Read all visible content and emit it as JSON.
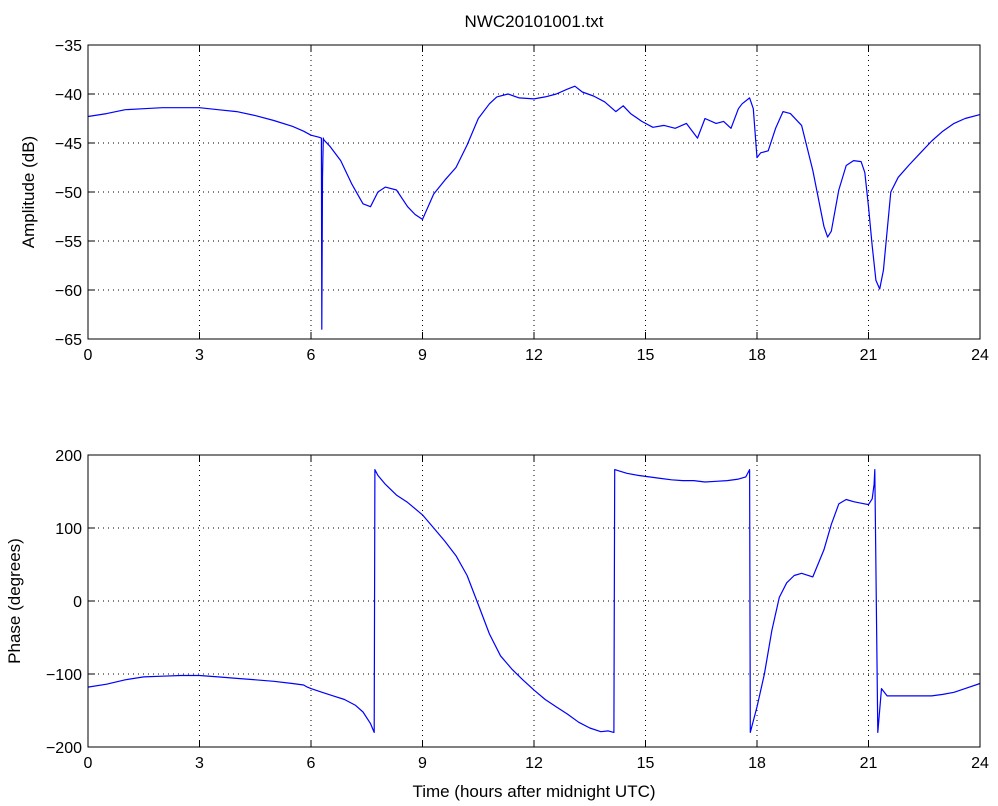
{
  "title": "NWC20101001.txt",
  "colors": {
    "line": "#0000ff",
    "axes": "#000000",
    "grid": "#000000",
    "background": "#ffffff"
  },
  "chart_data": [
    {
      "type": "line",
      "title": "NWC20101001.txt",
      "xlabel": "",
      "ylabel": "Amplitude (dB)",
      "xlim": [
        0,
        24
      ],
      "ylim": [
        -65,
        -35
      ],
      "xticks": [
        0,
        3,
        6,
        9,
        12,
        15,
        18,
        21,
        24
      ],
      "yticks": [
        -65,
        -60,
        -55,
        -50,
        -45,
        -40,
        -35
      ],
      "grid": true,
      "series": [
        {
          "x": [
            0,
            0.5,
            1,
            1.5,
            2,
            2.5,
            3,
            3.5,
            4,
            4.5,
            5,
            5.5,
            5.8,
            6,
            6.2,
            6.28,
            6.29,
            6.31,
            6.33,
            6.34,
            6.35,
            6.5,
            6.8,
            7.1,
            7.4,
            7.6,
            7.8,
            8.0,
            8.3,
            8.6,
            8.8,
            9.0,
            9.3,
            9.6,
            9.9,
            10.2,
            10.5,
            10.8,
            11.0,
            11.3,
            11.6,
            12.0,
            12.3,
            12.6,
            12.9,
            13.1,
            13.3,
            13.6,
            13.9,
            14.2,
            14.4,
            14.6,
            14.9,
            15.2,
            15.5,
            15.8,
            16.1,
            16.4,
            16.6,
            16.9,
            17.1,
            17.3,
            17.5,
            17.6,
            17.8,
            17.9,
            18.0,
            18.1,
            18.3,
            18.5,
            18.7,
            18.9,
            19.2,
            19.5,
            19.8,
            19.9,
            20.0,
            20.2,
            20.4,
            20.6,
            20.8,
            20.9,
            21.0,
            21.1,
            21.2,
            21.3,
            21.4,
            21.6,
            21.8,
            22.1,
            22.4,
            22.7,
            23.0,
            23.3,
            23.6,
            24.0
          ],
          "y": [
            -42.3,
            -42.0,
            -41.6,
            -41.5,
            -41.4,
            -41.4,
            -41.4,
            -41.6,
            -41.8,
            -42.2,
            -42.7,
            -43.3,
            -43.8,
            -44.2,
            -44.4,
            -44.5,
            -64.0,
            -48.5,
            -44.5,
            -44.6,
            -44.7,
            -45.3,
            -46.8,
            -49.2,
            -51.2,
            -51.5,
            -50.0,
            -49.5,
            -49.8,
            -51.5,
            -52.3,
            -52.8,
            -50.2,
            -48.8,
            -47.5,
            -45.2,
            -42.5,
            -41.0,
            -40.3,
            -40.0,
            -40.4,
            -40.5,
            -40.3,
            -40.0,
            -39.5,
            -39.2,
            -39.8,
            -40.2,
            -40.8,
            -41.8,
            -41.2,
            -42.0,
            -42.8,
            -43.4,
            -43.2,
            -43.5,
            -43.0,
            -44.5,
            -42.5,
            -43.0,
            -42.8,
            -43.5,
            -41.5,
            -41.0,
            -40.4,
            -41.5,
            -46.5,
            -46.0,
            -45.8,
            -43.5,
            -41.8,
            -42.0,
            -43.2,
            -47.8,
            -53.5,
            -54.6,
            -54.0,
            -49.8,
            -47.3,
            -46.8,
            -46.9,
            -48.0,
            -51.5,
            -55.5,
            -59.0,
            -59.9,
            -58.0,
            -50.0,
            -48.5,
            -47.2,
            -46.0,
            -44.8,
            -43.8,
            -43.0,
            -42.5,
            -42.1
          ],
          "x_scale_note": ""
        }
      ]
    },
    {
      "type": "line",
      "title": "",
      "xlabel": "Time (hours after midnight UTC)",
      "ylabel": "Phase (degrees)",
      "xlim": [
        0,
        24
      ],
      "ylim": [
        -200,
        200
      ],
      "xticks": [
        0,
        3,
        6,
        9,
        12,
        15,
        18,
        21,
        24
      ],
      "yticks": [
        -200,
        -100,
        0,
        100,
        200
      ],
      "grid": true,
      "series": [
        {
          "x": [
            0,
            0.5,
            1,
            1.5,
            2,
            2.5,
            3,
            3.5,
            4,
            4.5,
            5,
            5.5,
            5.8,
            5.9,
            6.0,
            6.3,
            6.6,
            6.9,
            7.2,
            7.4,
            7.6,
            7.7,
            7.72,
            7.8,
            8.0,
            8.3,
            8.6,
            9.0,
            9.3,
            9.6,
            9.9,
            10.2,
            10.5,
            10.8,
            11.1,
            11.4,
            11.7,
            12.0,
            12.3,
            12.6,
            12.9,
            13.2,
            13.5,
            13.8,
            14.0,
            14.15,
            14.17,
            14.3,
            14.5,
            14.8,
            15.1,
            15.4,
            15.7,
            16.0,
            16.3,
            16.6,
            16.9,
            17.2,
            17.5,
            17.7,
            17.8,
            17.82,
            18.0,
            18.2,
            18.4,
            18.6,
            18.8,
            19.0,
            19.2,
            19.5,
            19.8,
            20.0,
            20.2,
            20.4,
            20.6,
            20.8,
            21.0,
            21.1,
            21.15,
            21.17,
            21.25,
            21.35,
            21.5,
            21.8,
            22.1,
            22.4,
            22.7,
            23.0,
            23.3,
            23.6,
            24.0
          ],
          "y": [
            -118,
            -114,
            -108,
            -104,
            -103,
            -102,
            -102,
            -104,
            -106,
            -108,
            -110,
            -113,
            -115,
            -118,
            -120,
            -125,
            -130,
            -135,
            -143,
            -152,
            -168,
            -180,
            180,
            172,
            160,
            145,
            135,
            118,
            100,
            82,
            62,
            35,
            -5,
            -45,
            -75,
            -93,
            -108,
            -122,
            -135,
            -145,
            -155,
            -166,
            -174,
            -179,
            -178,
            -180,
            180,
            178,
            175,
            172,
            170,
            168,
            166,
            165,
            165,
            163,
            164,
            165,
            167,
            170,
            180,
            -180,
            -145,
            -100,
            -40,
            5,
            25,
            35,
            38,
            33,
            70,
            105,
            133,
            139,
            136,
            134,
            132,
            140,
            160,
            180,
            -180,
            -120,
            -130,
            -130,
            -130,
            -130,
            -130,
            -128,
            -125,
            -120,
            -113
          ]
        }
      ]
    }
  ]
}
